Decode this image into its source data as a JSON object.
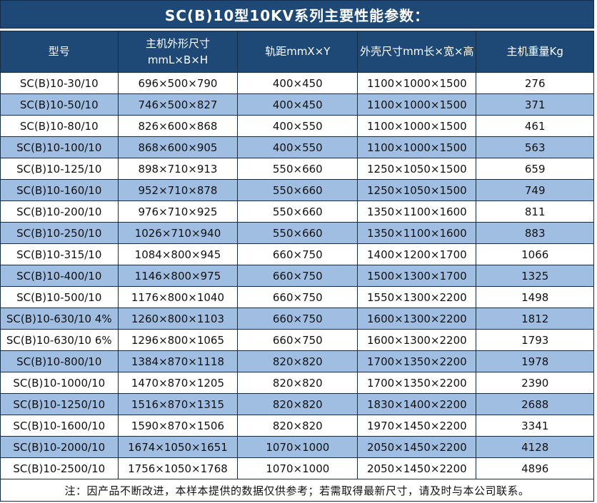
{
  "title": "SC(B)10型10KV系列主要性能参数：",
  "colors": {
    "header_bg": "#1E4976",
    "alt_row_bg": "#9FBEE1",
    "border": "#152C47",
    "header_text": "#FFFFFF",
    "body_text": "#111111"
  },
  "table": {
    "columns": [
      "型号",
      "主机外形尺寸\nmmL×B×H",
      "轨距mmX×Y",
      "外壳尺寸mm长×宽×高",
      "主机重量Kg"
    ],
    "rows": [
      [
        "SC(B)10-30/10",
        "696×500×790",
        "400×450",
        "1100×1000×1500",
        "276"
      ],
      [
        "SC(B)10-50/10",
        "746×500×827",
        "400×450",
        "1100×1000×1500",
        "371"
      ],
      [
        "SC(B)10-80/10",
        "826×600×868",
        "400×550",
        "1100×1000×1500",
        "461"
      ],
      [
        "SC(B)10-100/10",
        "868×600×905",
        "400×550",
        "1100×1000×1500",
        "563"
      ],
      [
        "SC(B)10-125/10",
        "898×710×913",
        "550×660",
        "1250×1050×1500",
        "659"
      ],
      [
        "SC(B)10-160/10",
        "952×710×878",
        "550×660",
        "1250×1050×1500",
        "749"
      ],
      [
        "SC(B)10-200/10",
        "976×710×925",
        "550×660",
        "1350×1100×1600",
        "811"
      ],
      [
        "SC(B)10-250/10",
        "1026×710×940",
        "550×660",
        "1350×1100×1600",
        "883"
      ],
      [
        "SC(B)10-315/10",
        "1084×800×945",
        "660×750",
        "1400×1200×1700",
        "1066"
      ],
      [
        "SC(B)10-400/10",
        "1146×800×975",
        "660×750",
        "1500×1300×1700",
        "1325"
      ],
      [
        "SC(B)10-500/10",
        "1176×800×1040",
        "660×750",
        "1550×1300×2200",
        "1498"
      ],
      [
        "SC(B)10-630/10 4%",
        "1260×800×1103",
        "660×750",
        "1600×1300×2200",
        "1812"
      ],
      [
        "SC(B)10-630/10 6%",
        "1296×800×1065",
        "660×750",
        "1600×1300×2200",
        "1793"
      ],
      [
        "SC(B)10-800/10",
        "1384×870×1118",
        "820×820",
        "1700×1350×2200",
        "1978"
      ],
      [
        "SC(B)10-1000/10",
        "1470×870×1205",
        "820×820",
        "1700×1350×2200",
        "2390"
      ],
      [
        "SC(B)10-1250/10",
        "1516×870×1315",
        "820×820",
        "1830×1400×2200",
        "2688"
      ],
      [
        "SC(B)10-1600/10",
        "1590×870×1506",
        "820×820",
        "1970×1450×2200",
        "3341"
      ],
      [
        "SC(B)10-2000/10",
        "1674×1050×1651",
        "1070×1000",
        "2050×1450×2200",
        "4128"
      ],
      [
        "SC(B)10-2500/10",
        "1756×1050×1768",
        "1070×1000",
        "2050×1450×2200",
        "4896"
      ]
    ],
    "note": "注：因产品不断改进，本样本提供的数据仅供参考；若需取得最新尺寸，请及时与本公司联系。"
  }
}
